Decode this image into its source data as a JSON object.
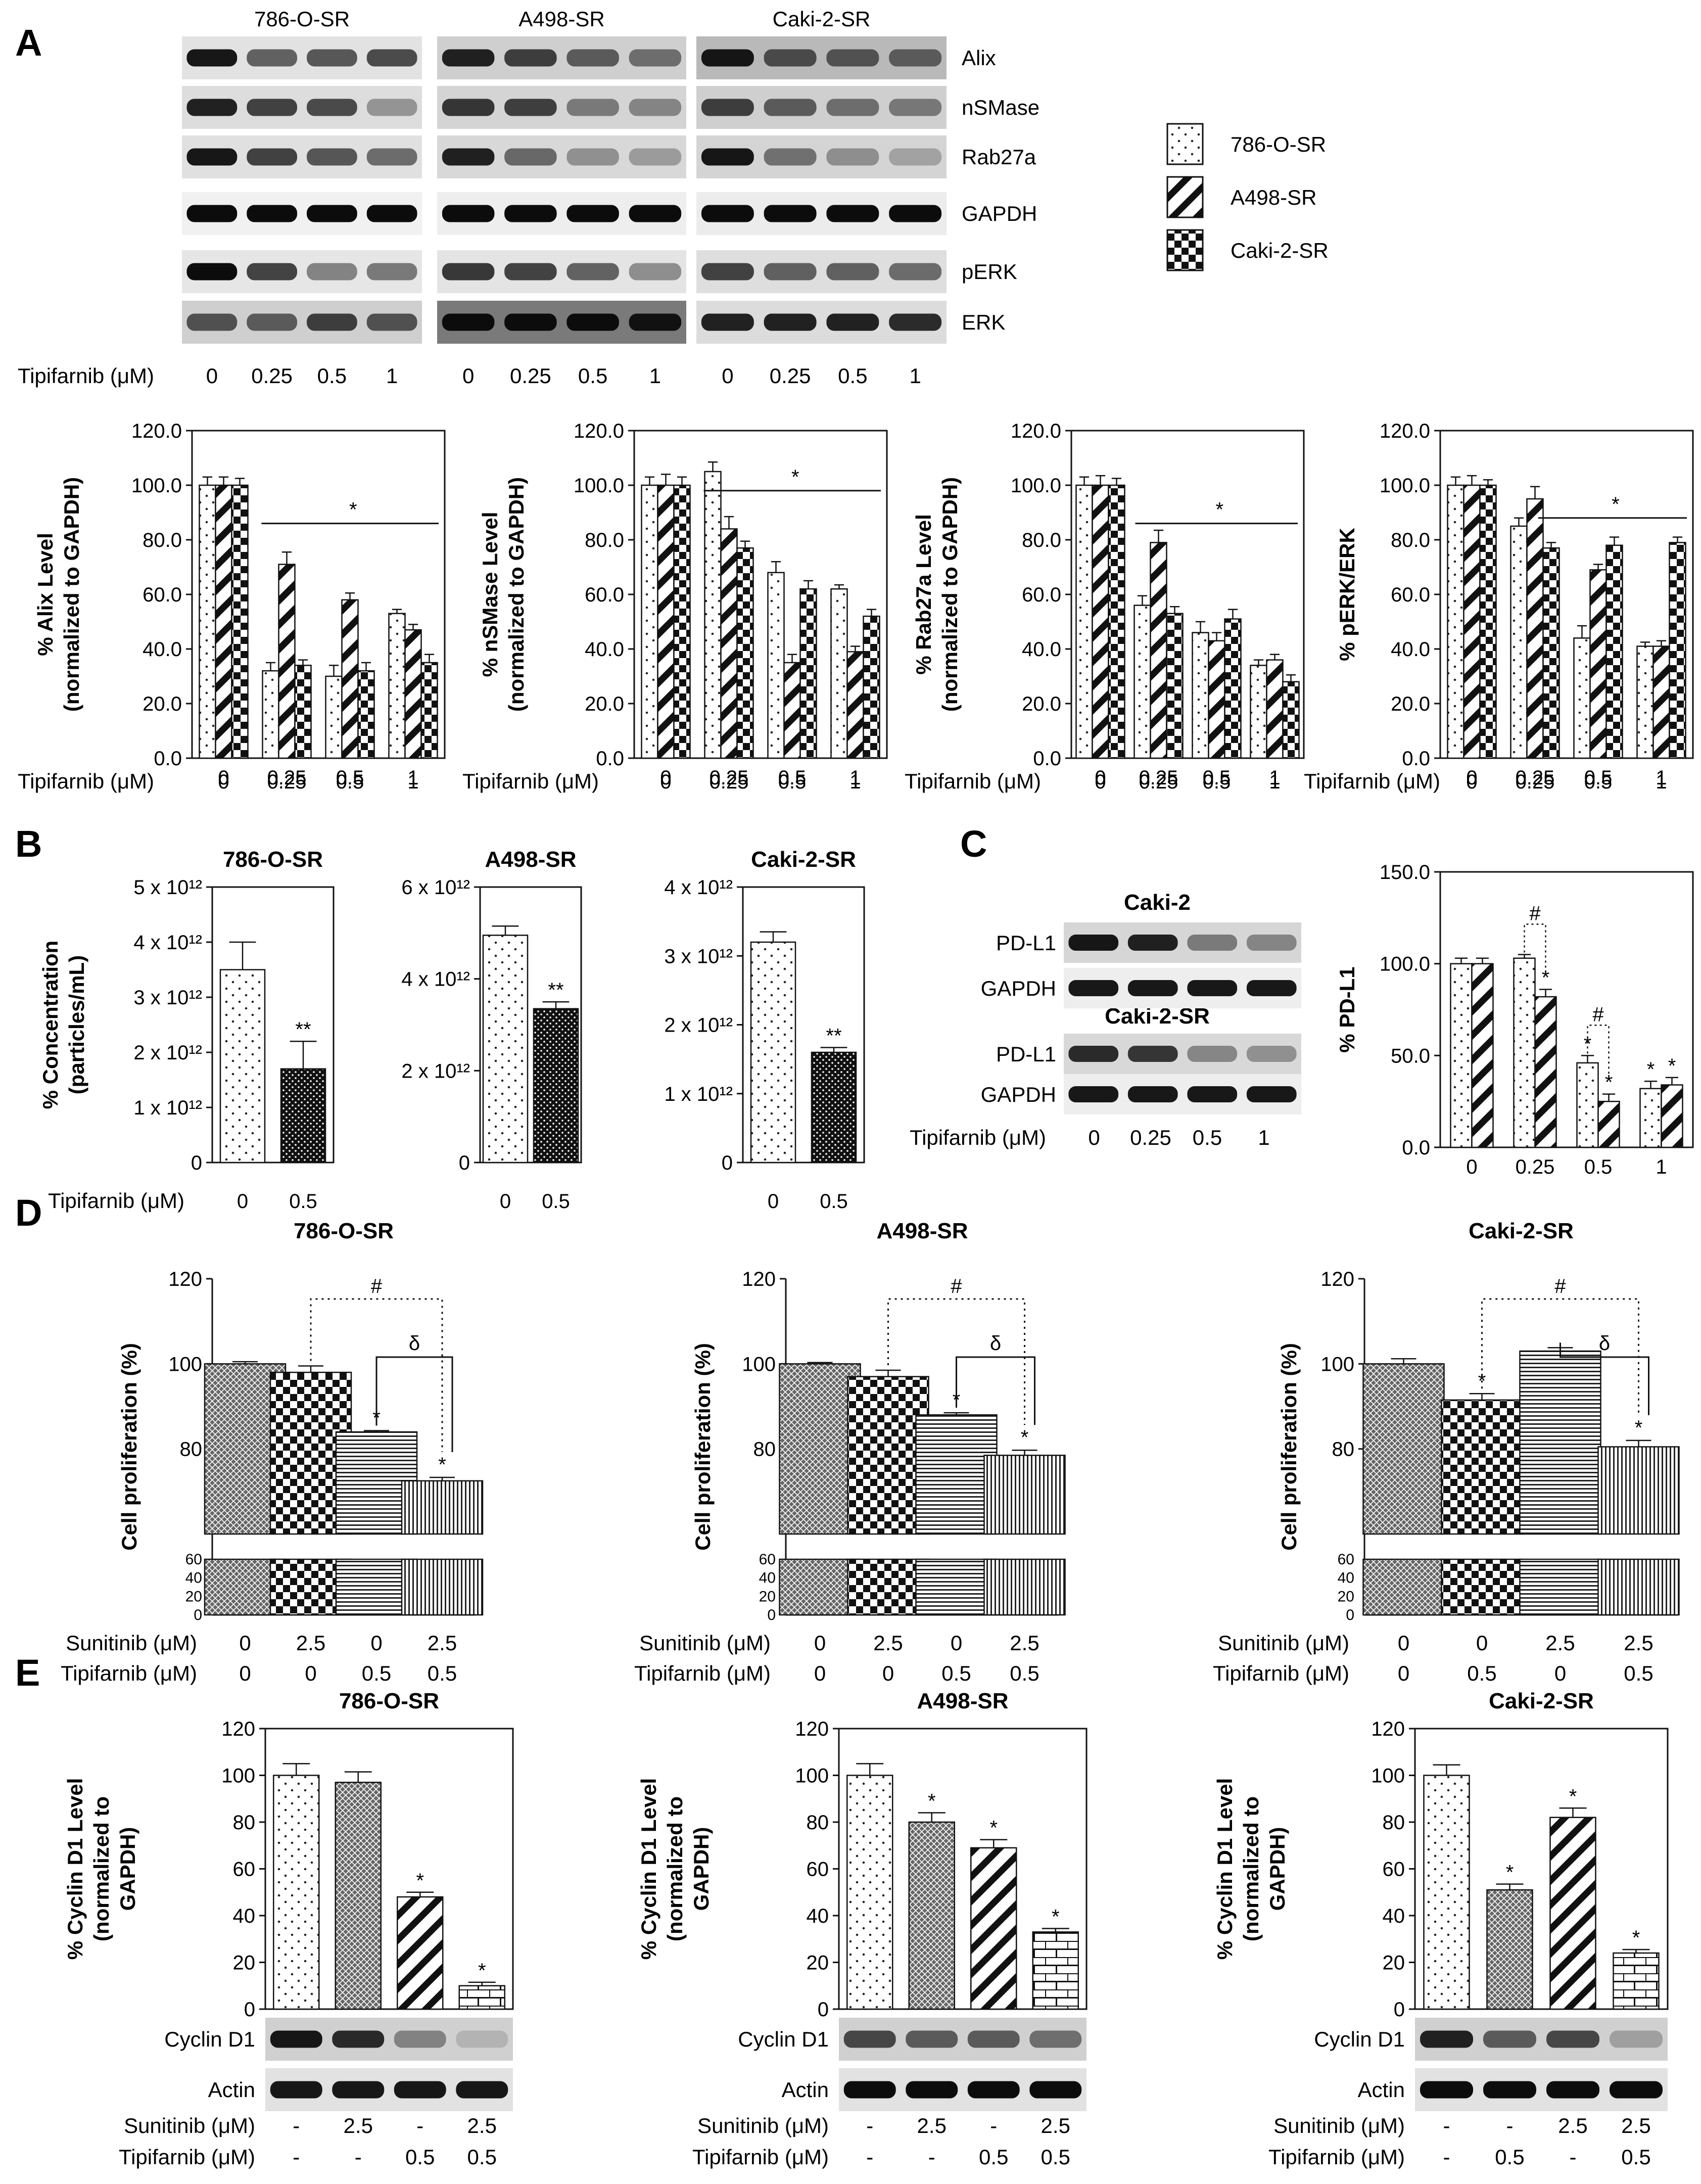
{
  "panel_labels": [
    "A",
    "B",
    "C",
    "D",
    "E"
  ],
  "legend": [
    {
      "name": "786-O-SR",
      "pattern": "dots"
    },
    {
      "name": "A498-SR",
      "pattern": "diag"
    },
    {
      "name": "Caki-2-SR",
      "pattern": "check"
    }
  ],
  "blots_A": {
    "groups": [
      "786-O-SR",
      "A498-SR",
      "Caki-2-SR"
    ],
    "proteins": [
      "Alix",
      "nSMase",
      "Rab27a",
      "GAPDH",
      "pERK",
      "ERK"
    ],
    "xlabel": "Tipifarnib (μM)",
    "doses": [
      "0",
      "0.25",
      "0.5",
      "1"
    ]
  },
  "chart_data": [
    {
      "id": "A-alix",
      "type": "bar",
      "pattern_set": [
        "dots",
        "diag",
        "check"
      ],
      "ylabel": [
        "% Alix Level",
        "(normalized to GAPDH)"
      ],
      "xlabel": "Tipifarnib (μM)",
      "categories": [
        "0",
        "0.25",
        "0.5",
        "1"
      ],
      "ylim": [
        0,
        120
      ],
      "yticks": [
        "0.0",
        "20.0",
        "40.0",
        "60.0",
        "80.0",
        "100.0",
        "120.0"
      ],
      "series": [
        {
          "name": "786-O-SR",
          "values": [
            100,
            32,
            30,
            53
          ]
        },
        {
          "name": "A498-SR",
          "values": [
            100,
            71,
            58,
            47
          ]
        },
        {
          "name": "Caki-2-SR",
          "values": [
            100,
            34,
            32,
            35
          ]
        }
      ],
      "errors": [
        [
          3,
          3,
          4,
          1.5
        ],
        [
          3,
          4.5,
          2.5,
          2
        ],
        [
          2.5,
          2,
          3,
          3
        ]
      ],
      "annotation": "*"
    },
    {
      "id": "A-nsmase",
      "type": "bar",
      "pattern_set": [
        "dots",
        "diag",
        "check"
      ],
      "ylabel": [
        "% nSMase Level",
        "(normalized to GAPDH)"
      ],
      "xlabel": "Tipifarnib (μM)",
      "categories": [
        "0",
        "0.25",
        "0.5",
        "1"
      ],
      "ylim": [
        0,
        120
      ],
      "yticks": [
        "0.0",
        "20.0",
        "40.0",
        "60.0",
        "80.0",
        "100.0",
        "120.0"
      ],
      "series": [
        {
          "name": "786-O-SR",
          "values": [
            100,
            105,
            68,
            62
          ]
        },
        {
          "name": "A498-SR",
          "values": [
            100,
            84,
            35,
            39
          ]
        },
        {
          "name": "Caki-2-SR",
          "values": [
            100,
            77,
            62,
            52
          ]
        }
      ],
      "errors": [
        [
          3,
          3.5,
          4,
          1.5
        ],
        [
          4,
          4.5,
          3,
          2
        ],
        [
          3,
          2.5,
          3,
          2.5
        ]
      ],
      "annotation": "*"
    },
    {
      "id": "A-rab27a",
      "type": "bar",
      "pattern_set": [
        "dots",
        "diag",
        "check"
      ],
      "ylabel": [
        "% Rab27a Level",
        "(normalized to GAPDH)"
      ],
      "xlabel": "Tipifarnib (μM)",
      "categories": [
        "0",
        "0.25",
        "0.5",
        "1"
      ],
      "ylim": [
        0,
        120
      ],
      "yticks": [
        "0.0",
        "20.0",
        "40.0",
        "60.0",
        "80.0",
        "100.0",
        "120.0"
      ],
      "series": [
        {
          "name": "786-O-SR",
          "values": [
            100,
            56,
            46,
            34
          ]
        },
        {
          "name": "A498-SR",
          "values": [
            100,
            79,
            43,
            36
          ]
        },
        {
          "name": "Caki-2-SR",
          "values": [
            100,
            53,
            51,
            28
          ]
        }
      ],
      "errors": [
        [
          3,
          3.5,
          4,
          2
        ],
        [
          3.5,
          4.5,
          3,
          2
        ],
        [
          2.5,
          2.5,
          3.5,
          2.5
        ]
      ],
      "annotation": "*"
    },
    {
      "id": "A-perk",
      "type": "bar",
      "pattern_set": [
        "dots",
        "diag",
        "check"
      ],
      "ylabel": [
        "% pERK/ERK"
      ],
      "xlabel": "Tipifarnib (μM)",
      "categories": [
        "0",
        "0.25",
        "0.5",
        "1"
      ],
      "ylim": [
        0,
        120
      ],
      "yticks": [
        "0.0",
        "20.0",
        "40.0",
        "60.0",
        "80.0",
        "100.0",
        "120.0"
      ],
      "series": [
        {
          "name": "786-O-SR",
          "values": [
            100,
            85,
            44,
            41
          ]
        },
        {
          "name": "A498-SR",
          "values": [
            100,
            95,
            69,
            41
          ]
        },
        {
          "name": "Caki-2-SR",
          "values": [
            100,
            77,
            78,
            79
          ]
        }
      ],
      "errors": [
        [
          3,
          3,
          4.5,
          1.5
        ],
        [
          3.5,
          4.5,
          2,
          2
        ],
        [
          2,
          2,
          3,
          2
        ]
      ],
      "annotation": "*"
    },
    {
      "id": "B-786",
      "type": "bar",
      "title": "786-O-SR",
      "pattern_set": [
        "dots",
        "dense"
      ],
      "ylabel": [
        "% Concentration",
        "(particles/mL)"
      ],
      "xlabel": "Tipifarnib (μM)",
      "categories": [
        "0",
        "0.5"
      ],
      "ylim": [
        0,
        5
      ],
      "yticks": [
        "0",
        "1 x 10¹²",
        "2 x 10¹²",
        "3 x 10¹²",
        "4 x 10¹²",
        "5 x 10¹²"
      ],
      "values": [
        3.5,
        1.7
      ],
      "errors": [
        0.5,
        0.5
      ],
      "annotations": [
        "",
        "**"
      ]
    },
    {
      "id": "B-a498",
      "type": "bar",
      "title": "A498-SR",
      "pattern_set": [
        "dots",
        "dense"
      ],
      "xlabel": "",
      "categories": [
        "0",
        "0.5"
      ],
      "ylim": [
        0,
        6
      ],
      "yticks": [
        "0",
        "2 x 10¹²",
        "4 x 10¹²",
        "6 x 10¹²"
      ],
      "values": [
        4.95,
        3.35
      ],
      "errors": [
        0.2,
        0.15
      ],
      "annotations": [
        "",
        "**"
      ]
    },
    {
      "id": "B-caki",
      "type": "bar",
      "title": "Caki-2-SR",
      "pattern_set": [
        "dots",
        "dense"
      ],
      "xlabel": "",
      "categories": [
        "0",
        "0.5"
      ],
      "ylim": [
        0,
        4
      ],
      "yticks": [
        "0",
        "1 x 10¹²",
        "2 x 10¹²",
        "3 x 10¹²",
        "4 x 10¹²"
      ],
      "values": [
        3.2,
        1.6
      ],
      "errors": [
        0.15,
        0.07
      ],
      "annotations": [
        "",
        "**"
      ]
    },
    {
      "id": "C-pdl1",
      "type": "bar",
      "pattern_set": [
        "dots",
        "diag"
      ],
      "ylabel": [
        "% PD-L1"
      ],
      "xlabel": "",
      "categories": [
        "0",
        "0.25",
        "0.5",
        "1"
      ],
      "ylim": [
        0,
        150
      ],
      "yticks": [
        "0.0",
        "50.0",
        "100.0",
        "150.0"
      ],
      "series": [
        {
          "name": "Caki-2",
          "values": [
            100,
            103,
            46,
            32
          ]
        },
        {
          "name": "Caki-2-SR",
          "values": [
            100,
            82,
            25,
            34
          ]
        }
      ],
      "errors": [
        [
          3,
          2,
          4,
          4
        ],
        [
          3,
          4,
          4,
          4
        ]
      ],
      "annotations": [
        [
          "",
          "",
          "*",
          "*"
        ],
        [
          "",
          "*",
          "*",
          "*"
        ]
      ],
      "brackets": [
        {
          "category": 1,
          "label": "#"
        },
        {
          "category": 2,
          "label": "#"
        }
      ]
    },
    {
      "id": "D-786",
      "type": "bar",
      "title": "786-O-SR",
      "pattern_set": [
        "mesh",
        "check",
        "hlines",
        "vlines"
      ],
      "ylabel": [
        "Cell proliferation (%)"
      ],
      "categories": [
        "1",
        "2",
        "3",
        "4"
      ],
      "ylim": [
        60,
        120
      ],
      "yticks_upper": [
        "80",
        "100",
        "120"
      ],
      "yticks_lower": [
        "0",
        "20",
        "40",
        "60"
      ],
      "values": [
        100,
        98,
        84,
        72.5
      ],
      "errors": [
        0.5,
        1.5,
        0.3,
        0.8
      ],
      "annotations": [
        "",
        "",
        "*",
        "*"
      ],
      "rows": [
        {
          "label": "Sunitinib (μM)",
          "values": [
            "0",
            "2.5",
            "0",
            "2.5"
          ]
        },
        {
          "label": "Tipifarnib (μM)",
          "values": [
            "0",
            "0",
            "0.5",
            "0.5"
          ]
        }
      ],
      "brackets": [
        {
          "from": 1,
          "to": 3,
          "label": "#",
          "style": "dotted"
        },
        {
          "from": 2,
          "to": 3,
          "label": "δ",
          "style": "solid"
        }
      ]
    },
    {
      "id": "D-a498",
      "type": "bar",
      "title": "A498-SR",
      "pattern_set": [
        "mesh",
        "check",
        "hlines",
        "vlines"
      ],
      "ylabel": [
        "Cell proliferation (%)"
      ],
      "categories": [
        "1",
        "2",
        "3",
        "4"
      ],
      "ylim": [
        60,
        120
      ],
      "yticks_upper": [
        "80",
        "100",
        "120"
      ],
      "yticks_lower": [
        "0",
        "20",
        "40",
        "60"
      ],
      "values": [
        100,
        97,
        88,
        78.5
      ],
      "errors": [
        0.3,
        1.5,
        0.5,
        1.2
      ],
      "annotations": [
        "",
        "",
        "*",
        "*"
      ],
      "rows": [
        {
          "label": "Sunitinib (μM)",
          "values": [
            "0",
            "2.5",
            "0",
            "2.5"
          ]
        },
        {
          "label": "Tipifarnib (μM)",
          "values": [
            "0",
            "0",
            "0.5",
            "0.5"
          ]
        }
      ],
      "brackets": [
        {
          "from": 1,
          "to": 3,
          "label": "#",
          "style": "dotted"
        },
        {
          "from": 2,
          "to": 3,
          "label": "δ",
          "style": "solid"
        }
      ]
    },
    {
      "id": "D-caki",
      "type": "bar",
      "title": "Caki-2-SR",
      "pattern_set": [
        "mesh",
        "check",
        "hlines",
        "vlines"
      ],
      "ylabel": [
        "Cell proliferation (%)"
      ],
      "categories": [
        "1",
        "2",
        "3",
        "4"
      ],
      "ylim": [
        60,
        120
      ],
      "yticks_upper": [
        "80",
        "100",
        "120"
      ],
      "yticks_lower": [
        "0",
        "20",
        "40",
        "60"
      ],
      "values": [
        100,
        91.5,
        103,
        80.5
      ],
      "errors": [
        1.2,
        1.5,
        0.8,
        1.5
      ],
      "annotations": [
        "",
        "*",
        "",
        "*"
      ],
      "rows": [
        {
          "label": "Sunitinib (μM)",
          "values": [
            "0",
            "0",
            "2.5",
            "2.5"
          ]
        },
        {
          "label": "Tipifarnib (μM)",
          "values": [
            "0",
            "0.5",
            "0",
            "0.5"
          ]
        }
      ],
      "brackets": [
        {
          "from": 1,
          "to": 3,
          "label": "#",
          "style": "dotted"
        },
        {
          "from": 2,
          "to": 3,
          "label": "δ",
          "style": "solid"
        }
      ]
    },
    {
      "id": "E-786",
      "type": "bar",
      "title": "786-O-SR",
      "pattern_set": [
        "dots",
        "mesh",
        "diag",
        "brick"
      ],
      "ylabel": [
        "% Cyclin D1 Level",
        "(normalized to",
        "GAPDH)"
      ],
      "categories": [
        "1",
        "2",
        "3",
        "4"
      ],
      "ylim": [
        0,
        120
      ],
      "yticks": [
        "0",
        "20",
        "40",
        "60",
        "80",
        "100",
        "120"
      ],
      "values": [
        100,
        97,
        48,
        10
      ],
      "errors": [
        5,
        4.5,
        2,
        1.5
      ],
      "annotations": [
        "",
        "",
        "*",
        "*"
      ],
      "rows": [
        {
          "label": "Sunitinib (μM)",
          "values": [
            "-",
            "2.5",
            "-",
            "2.5"
          ]
        },
        {
          "label": "Tipifarnib (μM)",
          "values": [
            "-",
            "-",
            "0.5",
            "0.5"
          ]
        }
      ]
    },
    {
      "id": "E-a498",
      "type": "bar",
      "title": "A498-SR",
      "pattern_set": [
        "dots",
        "mesh",
        "diag",
        "brick"
      ],
      "ylabel": [
        "% Cyclin D1 Level",
        "(normalized to",
        "GAPDH)"
      ],
      "categories": [
        "1",
        "2",
        "3",
        "4"
      ],
      "ylim": [
        0,
        120
      ],
      "yticks": [
        "0",
        "20",
        "40",
        "60",
        "80",
        "100",
        "120"
      ],
      "values": [
        100,
        80,
        69,
        33
      ],
      "errors": [
        5,
        4,
        3.5,
        1.5
      ],
      "annotations": [
        "",
        "*",
        "*",
        "*"
      ],
      "rows": [
        {
          "label": "Sunitinib (μM)",
          "values": [
            "-",
            "2.5",
            "-",
            "2.5"
          ]
        },
        {
          "label": "Tipifarnib (μM)",
          "values": [
            "-",
            "-",
            "0.5",
            "0.5"
          ]
        }
      ]
    },
    {
      "id": "E-caki",
      "type": "bar",
      "title": "Caki-2-SR",
      "pattern_set": [
        "dots",
        "mesh",
        "diag",
        "brick"
      ],
      "ylabel": [
        "% Cyclin D1 Level",
        "(normalized to",
        "GAPDH)"
      ],
      "categories": [
        "1",
        "2",
        "3",
        "4"
      ],
      "ylim": [
        0,
        120
      ],
      "yticks": [
        "0",
        "20",
        "40",
        "60",
        "80",
        "100",
        "120"
      ],
      "values": [
        100,
        51,
        82,
        24
      ],
      "errors": [
        4.5,
        2.5,
        4,
        1.5
      ],
      "annotations": [
        "",
        "*",
        "*",
        "*"
      ],
      "rows": [
        {
          "label": "Sunitinib (μM)",
          "values": [
            "-",
            "-",
            "2.5",
            "2.5"
          ]
        },
        {
          "label": "Tipifarnib (μM)",
          "values": [
            "-",
            "0.5",
            "-",
            "0.5"
          ]
        }
      ]
    }
  ],
  "blots_C": {
    "titles": [
      "Caki-2",
      "Caki-2-SR"
    ],
    "proteins": [
      "PD-L1",
      "GAPDH"
    ],
    "xlabel": "Tipifarnib (μM)",
    "doses": [
      "0",
      "0.25",
      "0.5",
      "1"
    ]
  },
  "blots_E": {
    "proteins": [
      "Cyclin D1",
      "Actin"
    ]
  }
}
